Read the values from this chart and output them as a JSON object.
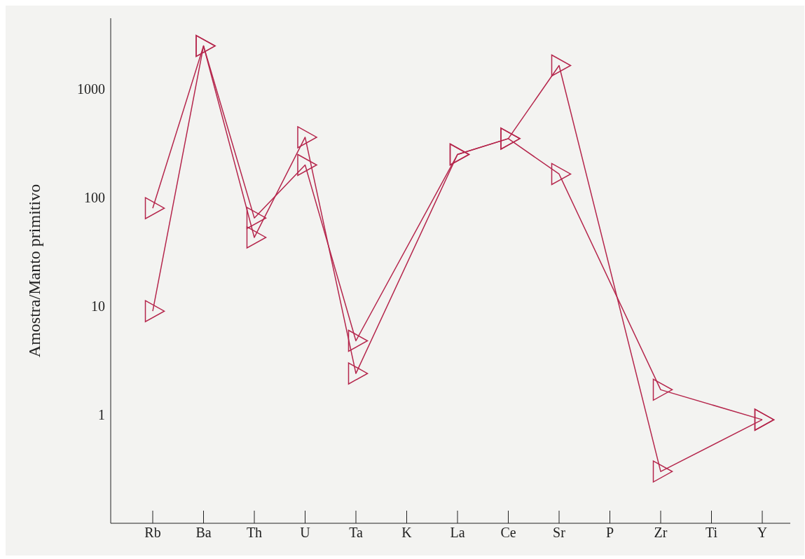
{
  "chart_data": {
    "type": "line",
    "ylabel": "Amostra/Manto primitivo",
    "categories": [
      "Rb",
      "Ba",
      "Th",
      "U",
      "Ta",
      "K",
      "La",
      "Ce",
      "Sr",
      "P",
      "Zr",
      "Ti",
      "Y"
    ],
    "series": [
      {
        "color": "#b5264c",
        "values": [
          80,
          2500,
          65,
          200,
          4.8,
          null,
          250,
          350,
          165,
          null,
          1.7,
          null,
          0.9
        ]
      },
      {
        "color": "#b5264c",
        "values": [
          9,
          2500,
          43,
          360,
          2.4,
          null,
          250,
          350,
          1650,
          null,
          0.3,
          null,
          0.9
        ]
      }
    ],
    "log": "y",
    "ylim": [
      0.1,
      4500
    ],
    "yticks": [
      1,
      10,
      100,
      1000
    ],
    "grid": false,
    "legend": false,
    "marker": "triangle",
    "line_style": "solid"
  }
}
